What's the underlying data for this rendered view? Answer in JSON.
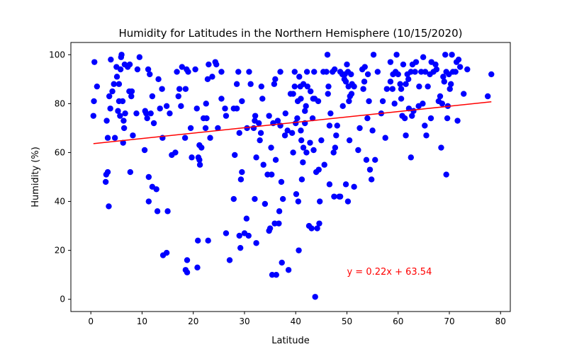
{
  "chart_data": {
    "type": "scatter",
    "title": "Humidity for Latitudes in the Northern Hemisphere (10/15/2020)",
    "xlabel": "Latitude",
    "ylabel": "Humidity (%)",
    "xlim": [
      -3.9,
      81.9
    ],
    "ylim": [
      -5,
      105
    ],
    "xticks": [
      0,
      10,
      20,
      30,
      40,
      50,
      60,
      70,
      80
    ],
    "yticks": [
      0,
      20,
      40,
      60,
      80,
      100
    ],
    "grid": false,
    "point_color": "#0000ff",
    "regression": {
      "slope": 0.22,
      "intercept": 63.54,
      "x_range": [
        0.5,
        78.2
      ],
      "color": "#ff0000",
      "equation_text": "y = 0.22x + 63.54",
      "equation_anchor": [
        50,
        10
      ]
    },
    "points": [
      [
        0.5,
        75
      ],
      [
        0.6,
        81
      ],
      [
        0.7,
        97
      ],
      [
        1.2,
        87
      ],
      [
        2.9,
        48
      ],
      [
        3.0,
        51
      ],
      [
        3.1,
        73
      ],
      [
        3.3,
        52
      ],
      [
        3.3,
        66
      ],
      [
        3.5,
        38
      ],
      [
        3.6,
        83
      ],
      [
        3.8,
        78
      ],
      [
        3.9,
        98
      ],
      [
        4.2,
        85
      ],
      [
        4.5,
        88
      ],
      [
        4.7,
        66
      ],
      [
        5.0,
        95
      ],
      [
        5.1,
        91
      ],
      [
        5.3,
        77
      ],
      [
        5.5,
        88
      ],
      [
        5.5,
        81
      ],
      [
        5.7,
        75
      ],
      [
        5.8,
        94
      ],
      [
        5.9,
        99
      ],
      [
        6.0,
        100
      ],
      [
        6.2,
        81
      ],
      [
        6.3,
        64
      ],
      [
        6.4,
        73
      ],
      [
        6.5,
        70
      ],
      [
        6.6,
        96
      ],
      [
        6.7,
        76
      ],
      [
        7.2,
        95
      ],
      [
        7.5,
        85
      ],
      [
        7.6,
        96
      ],
      [
        7.7,
        52
      ],
      [
        7.9,
        83
      ],
      [
        8.0,
        85
      ],
      [
        8.2,
        67
      ],
      [
        8.9,
        76
      ],
      [
        9.1,
        94
      ],
      [
        9.5,
        99
      ],
      [
        10.5,
        61
      ],
      [
        10.6,
        77
      ],
      [
        10.8,
        76
      ],
      [
        11.0,
        74
      ],
      [
        11.2,
        94
      ],
      [
        11.3,
        50
      ],
      [
        11.3,
        40
      ],
      [
        11.5,
        92
      ],
      [
        11.7,
        76
      ],
      [
        12.0,
        83
      ],
      [
        12.0,
        46
      ],
      [
        12.3,
        72
      ],
      [
        12.8,
        45
      ],
      [
        13.0,
        36
      ],
      [
        13.2,
        90
      ],
      [
        13.5,
        78
      ],
      [
        13.9,
        86
      ],
      [
        14.0,
        66
      ],
      [
        14.1,
        18
      ],
      [
        14.8,
        19
      ],
      [
        14.8,
        79
      ],
      [
        15.0,
        36
      ],
      [
        15.4,
        76
      ],
      [
        15.8,
        59
      ],
      [
        16.5,
        60
      ],
      [
        16.8,
        93
      ],
      [
        17.1,
        83
      ],
      [
        17.3,
        86
      ],
      [
        17.6,
        79
      ],
      [
        17.8,
        95
      ],
      [
        18.4,
        66
      ],
      [
        18.5,
        86
      ],
      [
        18.5,
        12
      ],
      [
        18.7,
        94
      ],
      [
        18.8,
        11
      ],
      [
        18.8,
        16
      ],
      [
        19.0,
        93
      ],
      [
        19.5,
        70
      ],
      [
        19.7,
        58
      ],
      [
        20.4,
        94
      ],
      [
        20.7,
        78
      ],
      [
        20.8,
        13
      ],
      [
        20.9,
        24
      ],
      [
        21.0,
        58
      ],
      [
        21.2,
        57
      ],
      [
        21.2,
        63
      ],
      [
        21.3,
        55
      ],
      [
        21.6,
        62
      ],
      [
        22.0,
        74
      ],
      [
        22.4,
        70
      ],
      [
        22.5,
        80
      ],
      [
        22.6,
        74
      ],
      [
        22.8,
        90
      ],
      [
        22.9,
        24
      ],
      [
        23.0,
        96
      ],
      [
        23.3,
        66
      ],
      [
        23.7,
        91
      ],
      [
        24.3,
        97
      ],
      [
        24.5,
        96
      ],
      [
        24.8,
        70
      ],
      [
        25.5,
        93
      ],
      [
        25.5,
        82
      ],
      [
        26.2,
        78
      ],
      [
        26.4,
        27
      ],
      [
        26.4,
        75
      ],
      [
        27.1,
        16
      ],
      [
        27.9,
        78
      ],
      [
        27.9,
        41
      ],
      [
        28.1,
        59
      ],
      [
        28.5,
        78
      ],
      [
        28.5,
        88
      ],
      [
        28.8,
        93
      ],
      [
        29.0,
        68
      ],
      [
        29.0,
        26
      ],
      [
        29.2,
        21
      ],
      [
        29.3,
        49
      ],
      [
        29.5,
        81
      ],
      [
        29.5,
        52
      ],
      [
        30.0,
        27
      ],
      [
        30.4,
        33
      ],
      [
        30.5,
        70
      ],
      [
        30.8,
        26
      ],
      [
        30.9,
        93
      ],
      [
        31.2,
        88
      ],
      [
        31.8,
        70
      ],
      [
        32.0,
        41
      ],
      [
        32.0,
        73
      ],
      [
        32.1,
        75
      ],
      [
        32.3,
        58
      ],
      [
        32.3,
        23
      ],
      [
        32.8,
        72
      ],
      [
        33.0,
        65
      ],
      [
        33.2,
        68
      ],
      [
        33.3,
        87
      ],
      [
        33.5,
        82
      ],
      [
        33.7,
        55
      ],
      [
        34.0,
        39
      ],
      [
        34.5,
        51
      ],
      [
        34.8,
        75
      ],
      [
        34.8,
        28
      ],
      [
        35.0,
        29
      ],
      [
        35.2,
        62
      ],
      [
        35.3,
        51
      ],
      [
        35.4,
        10
      ],
      [
        35.6,
        72
      ],
      [
        35.8,
        88
      ],
      [
        35.9,
        31
      ],
      [
        36.0,
        90
      ],
      [
        36.1,
        57
      ],
      [
        36.2,
        10
      ],
      [
        36.5,
        73
      ],
      [
        36.7,
        31
      ],
      [
        36.8,
        36
      ],
      [
        37.0,
        71
      ],
      [
        37.0,
        93
      ],
      [
        37.2,
        48
      ],
      [
        37.3,
        15
      ],
      [
        37.5,
        41
      ],
      [
        37.9,
        67
      ],
      [
        38.0,
        76
      ],
      [
        38.4,
        69
      ],
      [
        38.6,
        12
      ],
      [
        39.0,
        84
      ],
      [
        39.3,
        68
      ],
      [
        39.5,
        84
      ],
      [
        39.5,
        60
      ],
      [
        39.8,
        87
      ],
      [
        39.8,
        93
      ],
      [
        40.0,
        72
      ],
      [
        40.1,
        43
      ],
      [
        40.3,
        74
      ],
      [
        40.4,
        81
      ],
      [
        40.5,
        40
      ],
      [
        40.6,
        20
      ],
      [
        40.7,
        91
      ],
      [
        40.9,
        87
      ],
      [
        41.0,
        82
      ],
      [
        41.0,
        69
      ],
      [
        41.1,
        65
      ],
      [
        41.2,
        49
      ],
      [
        41.4,
        56
      ],
      [
        41.5,
        88
      ],
      [
        41.5,
        62
      ],
      [
        41.8,
        77
      ],
      [
        41.8,
        72
      ],
      [
        42.0,
        79
      ],
      [
        42.1,
        60
      ],
      [
        42.2,
        93
      ],
      [
        42.3,
        87
      ],
      [
        42.6,
        30
      ],
      [
        42.8,
        64
      ],
      [
        42.9,
        85
      ],
      [
        43.1,
        29
      ],
      [
        43.3,
        74
      ],
      [
        43.4,
        82
      ],
      [
        43.5,
        61
      ],
      [
        43.6,
        93
      ],
      [
        43.7,
        82
      ],
      [
        43.8,
        1
      ],
      [
        44.0,
        52
      ],
      [
        44.2,
        29
      ],
      [
        44.4,
        81
      ],
      [
        44.5,
        53
      ],
      [
        44.6,
        31
      ],
      [
        44.7,
        40
      ],
      [
        45.0,
        65
      ],
      [
        45.4,
        93
      ],
      [
        45.6,
        55
      ],
      [
        46.0,
        93
      ],
      [
        46.2,
        100
      ],
      [
        46.3,
        84
      ],
      [
        46.4,
        87
      ],
      [
        46.6,
        71
      ],
      [
        46.6,
        47
      ],
      [
        46.8,
        76
      ],
      [
        47.2,
        93
      ],
      [
        47.4,
        60
      ],
      [
        47.5,
        42
      ],
      [
        47.6,
        94
      ],
      [
        47.7,
        62
      ],
      [
        47.9,
        67
      ],
      [
        48.1,
        71
      ],
      [
        48.5,
        42
      ],
      [
        48.7,
        42
      ],
      [
        48.7,
        93
      ],
      [
        49.1,
        92
      ],
      [
        49.2,
        79
      ],
      [
        49.5,
        90
      ],
      [
        49.6,
        92
      ],
      [
        49.8,
        47
      ],
      [
        49.8,
        89
      ],
      [
        50.0,
        96
      ],
      [
        50.2,
        93
      ],
      [
        50.2,
        40
      ],
      [
        50.3,
        87
      ],
      [
        50.4,
        81
      ],
      [
        50.5,
        65
      ],
      [
        50.6,
        83
      ],
      [
        50.8,
        92
      ],
      [
        50.9,
        84
      ],
      [
        51.0,
        88
      ],
      [
        51.4,
        87
      ],
      [
        51.4,
        46
      ],
      [
        52.2,
        61
      ],
      [
        52.5,
        70
      ],
      [
        53.0,
        94
      ],
      [
        53.2,
        86
      ],
      [
        53.4,
        89
      ],
      [
        53.5,
        95
      ],
      [
        53.8,
        57
      ],
      [
        54.0,
        74
      ],
      [
        54.1,
        92
      ],
      [
        54.3,
        81
      ],
      [
        54.5,
        53
      ],
      [
        54.8,
        49
      ],
      [
        55.0,
        69
      ],
      [
        55.2,
        100
      ],
      [
        55.5,
        57
      ],
      [
        56.0,
        93
      ],
      [
        56.7,
        76
      ],
      [
        57.0,
        81
      ],
      [
        57.5,
        66
      ],
      [
        57.8,
        86
      ],
      [
        58.5,
        89
      ],
      [
        58.5,
        97
      ],
      [
        58.9,
        86
      ],
      [
        59.0,
        92
      ],
      [
        59.3,
        80
      ],
      [
        59.5,
        93
      ],
      [
        59.7,
        100
      ],
      [
        60.0,
        92
      ],
      [
        60.4,
        88
      ],
      [
        60.6,
        82
      ],
      [
        60.6,
        86
      ],
      [
        60.8,
        75
      ],
      [
        61.0,
        96
      ],
      [
        61.3,
        74
      ],
      [
        61.5,
        67
      ],
      [
        61.5,
        88
      ],
      [
        61.8,
        92
      ],
      [
        62.0,
        90
      ],
      [
        62.1,
        78
      ],
      [
        62.5,
        58
      ],
      [
        62.5,
        93
      ],
      [
        62.7,
        75
      ],
      [
        62.8,
        96
      ],
      [
        63.0,
        77
      ],
      [
        63.3,
        93
      ],
      [
        63.5,
        97
      ],
      [
        64.0,
        79
      ],
      [
        64.1,
        87
      ],
      [
        64.5,
        93
      ],
      [
        64.8,
        80
      ],
      [
        64.9,
        99
      ],
      [
        65.2,
        71
      ],
      [
        65.3,
        93
      ],
      [
        65.5,
        67
      ],
      [
        65.8,
        87
      ],
      [
        66.2,
        92
      ],
      [
        66.4,
        74
      ],
      [
        66.5,
        97
      ],
      [
        66.9,
        93
      ],
      [
        67.3,
        96
      ],
      [
        67.5,
        94
      ],
      [
        67.9,
        81
      ],
      [
        68.2,
        83
      ],
      [
        68.4,
        62
      ],
      [
        68.6,
        80
      ],
      [
        68.8,
        91
      ],
      [
        69.0,
        89
      ],
      [
        69.2,
        100
      ],
      [
        69.4,
        93
      ],
      [
        69.4,
        51
      ],
      [
        69.6,
        74
      ],
      [
        69.7,
        79
      ],
      [
        69.9,
        92
      ],
      [
        70.1,
        86
      ],
      [
        70.3,
        88
      ],
      [
        70.5,
        100
      ],
      [
        70.7,
        93
      ],
      [
        71.2,
        93
      ],
      [
        71.4,
        97
      ],
      [
        71.6,
        73
      ],
      [
        71.8,
        98
      ],
      [
        72.1,
        95
      ],
      [
        72.8,
        84
      ],
      [
        73.5,
        94
      ],
      [
        77.5,
        83
      ],
      [
        78.2,
        92
      ]
    ]
  }
}
